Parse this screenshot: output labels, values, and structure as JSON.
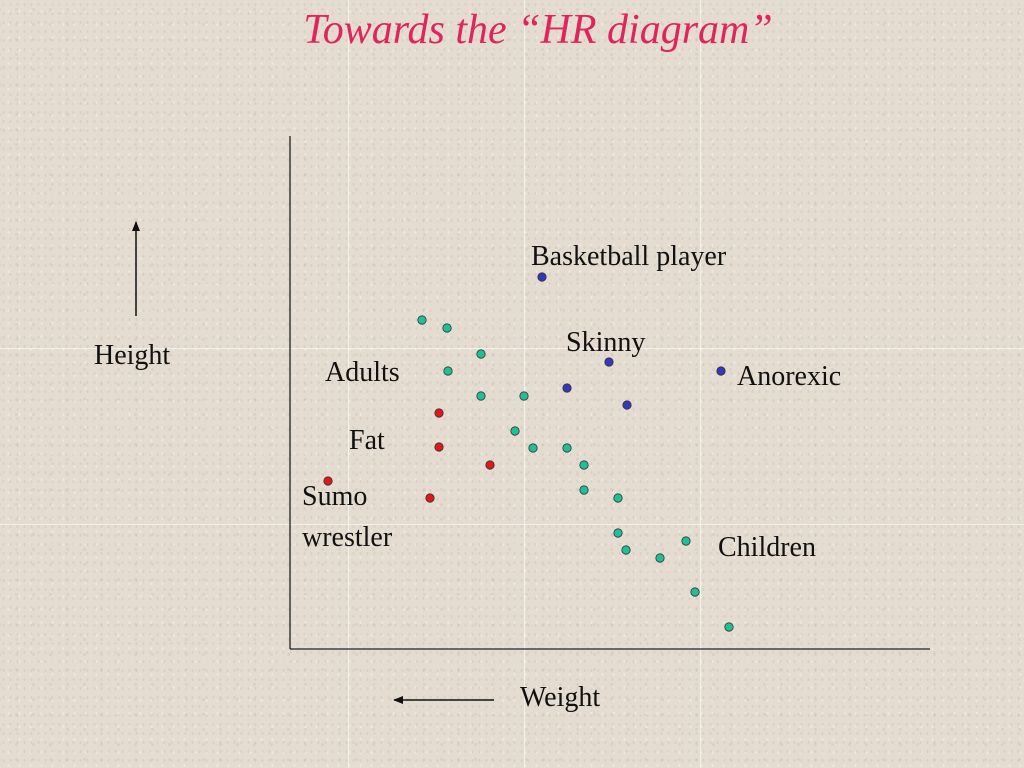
{
  "title": "Towards the “HR diagram”",
  "axes": {
    "x_label": "Weight",
    "y_label": "Height",
    "x_arrow_direction": "left",
    "y_arrow_direction": "up"
  },
  "labels": {
    "basketball": "Basketball player",
    "skinny": "Skinny",
    "anorexic": "Anorexic",
    "adults": "Adults",
    "fat": "Fat",
    "sumo_line1": "Sumo",
    "sumo_line2": "wrestler",
    "children": "Children"
  },
  "colors": {
    "title": "#e0245e",
    "adults_children": "#1fbf99",
    "fat_sumo": "#e01818",
    "thin": "#3438c0",
    "axis": "#222222"
  },
  "groups": {
    "adults_children": {
      "color_key": "adults_children",
      "count": 22
    },
    "fat_sumo": {
      "color_key": "fat_sumo",
      "count": 5
    },
    "thin": {
      "color_key": "thin",
      "count": 5
    }
  }
}
